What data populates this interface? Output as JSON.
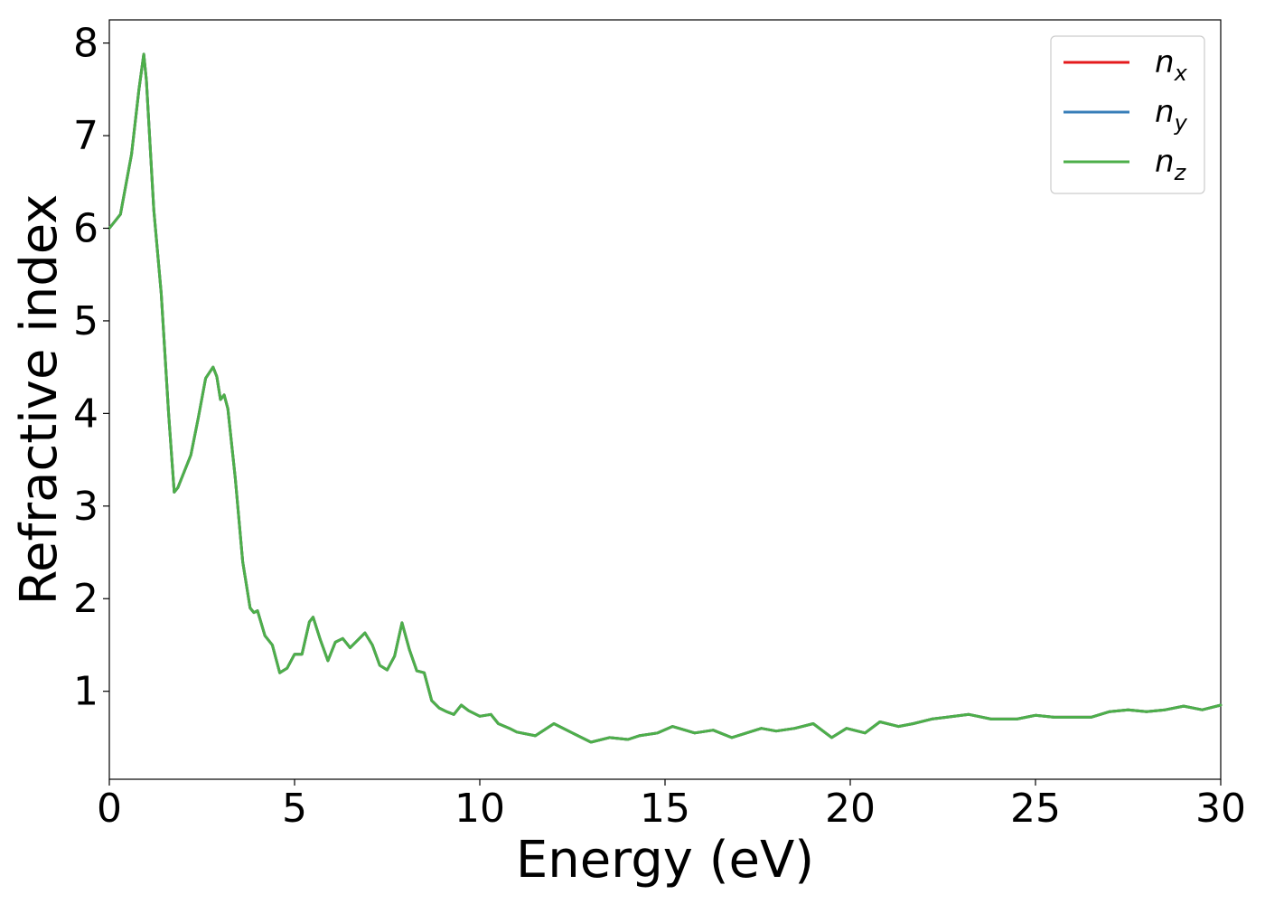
{
  "chart_data": {
    "type": "line",
    "title": "",
    "xlabel": "Energy (eV)",
    "ylabel": "Refractive index",
    "xlim": [
      0,
      30
    ],
    "ylim": [
      0.05,
      8.25
    ],
    "xticks": [
      0,
      5,
      10,
      15,
      20,
      25,
      30
    ],
    "yticks": [
      1,
      2,
      3,
      4,
      5,
      6,
      7,
      8
    ],
    "grid": false,
    "legend_position": "top-right",
    "colors": {
      "nx": "#e41a1c",
      "ny": "#377eb8",
      "nz": "#4daf4a"
    },
    "legend": [
      {
        "key": "nx",
        "base": "n",
        "sub": "x"
      },
      {
        "key": "ny",
        "base": "n",
        "sub": "y"
      },
      {
        "key": "nz",
        "base": "n",
        "sub": "z"
      }
    ],
    "x": [
      0,
      0.3,
      0.6,
      0.8,
      0.93,
      1.0,
      1.2,
      1.4,
      1.6,
      1.75,
      1.85,
      2.0,
      2.2,
      2.4,
      2.6,
      2.8,
      2.9,
      3.0,
      3.1,
      3.2,
      3.4,
      3.6,
      3.8,
      3.9,
      4.0,
      4.2,
      4.4,
      4.6,
      4.8,
      5.0,
      5.2,
      5.4,
      5.5,
      5.7,
      5.9,
      6.1,
      6.3,
      6.5,
      6.7,
      6.9,
      7.1,
      7.3,
      7.5,
      7.7,
      7.9,
      8.1,
      8.3,
      8.5,
      8.7,
      8.9,
      9.1,
      9.3,
      9.5,
      9.7,
      10.0,
      10.3,
      10.5,
      10.8,
      11.0,
      11.5,
      12.0,
      12.5,
      13.0,
      13.5,
      14.0,
      14.3,
      14.8,
      15.2,
      15.8,
      16.3,
      16.8,
      17.2,
      17.6,
      18.0,
      18.5,
      19.0,
      19.5,
      19.9,
      20.4,
      20.8,
      21.3,
      21.7,
      22.2,
      22.6,
      23.2,
      23.8,
      24.5,
      25.0,
      25.5,
      26.0,
      26.5,
      27.0,
      27.5,
      28.0,
      28.5,
      29.0,
      29.5,
      30.0
    ],
    "series": [
      {
        "name": "nx",
        "values": [
          6.0,
          6.15,
          6.8,
          7.5,
          7.88,
          7.6,
          6.2,
          5.3,
          4.0,
          3.15,
          3.2,
          3.35,
          3.55,
          3.95,
          4.38,
          4.5,
          4.4,
          4.15,
          4.2,
          4.05,
          3.3,
          2.4,
          1.9,
          1.85,
          1.87,
          1.6,
          1.5,
          1.2,
          1.25,
          1.4,
          1.4,
          1.75,
          1.8,
          1.55,
          1.33,
          1.53,
          1.57,
          1.47,
          1.55,
          1.63,
          1.5,
          1.28,
          1.23,
          1.38,
          1.74,
          1.45,
          1.22,
          1.2,
          0.9,
          0.82,
          0.78,
          0.75,
          0.85,
          0.79,
          0.73,
          0.75,
          0.65,
          0.6,
          0.56,
          0.52,
          0.65,
          0.55,
          0.45,
          0.5,
          0.48,
          0.52,
          0.55,
          0.62,
          0.55,
          0.58,
          0.5,
          0.55,
          0.6,
          0.57,
          0.6,
          0.65,
          0.5,
          0.6,
          0.55,
          0.67,
          0.62,
          0.65,
          0.7,
          0.72,
          0.75,
          0.7,
          0.7,
          0.74,
          0.72,
          0.72,
          0.72,
          0.78,
          0.8,
          0.78,
          0.8,
          0.84,
          0.8,
          0.85
        ]
      },
      {
        "name": "ny",
        "values": [
          6.0,
          6.15,
          6.8,
          7.5,
          7.88,
          7.6,
          6.2,
          5.3,
          4.0,
          3.15,
          3.2,
          3.35,
          3.55,
          3.95,
          4.38,
          4.5,
          4.4,
          4.15,
          4.2,
          4.05,
          3.3,
          2.4,
          1.9,
          1.85,
          1.87,
          1.6,
          1.5,
          1.2,
          1.25,
          1.4,
          1.4,
          1.75,
          1.8,
          1.55,
          1.33,
          1.53,
          1.57,
          1.47,
          1.55,
          1.63,
          1.5,
          1.28,
          1.23,
          1.38,
          1.74,
          1.45,
          1.22,
          1.2,
          0.9,
          0.82,
          0.78,
          0.75,
          0.85,
          0.79,
          0.73,
          0.75,
          0.65,
          0.6,
          0.56,
          0.52,
          0.65,
          0.55,
          0.45,
          0.5,
          0.48,
          0.52,
          0.55,
          0.62,
          0.55,
          0.58,
          0.5,
          0.55,
          0.6,
          0.57,
          0.6,
          0.65,
          0.5,
          0.6,
          0.55,
          0.67,
          0.62,
          0.65,
          0.7,
          0.72,
          0.75,
          0.7,
          0.7,
          0.74,
          0.72,
          0.72,
          0.72,
          0.78,
          0.8,
          0.78,
          0.8,
          0.84,
          0.8,
          0.85
        ]
      },
      {
        "name": "nz",
        "values": [
          6.0,
          6.15,
          6.8,
          7.5,
          7.88,
          7.6,
          6.2,
          5.3,
          4.0,
          3.15,
          3.2,
          3.35,
          3.55,
          3.95,
          4.38,
          4.5,
          4.4,
          4.15,
          4.2,
          4.05,
          3.3,
          2.4,
          1.9,
          1.85,
          1.87,
          1.6,
          1.5,
          1.2,
          1.25,
          1.4,
          1.4,
          1.75,
          1.8,
          1.55,
          1.33,
          1.53,
          1.57,
          1.47,
          1.55,
          1.63,
          1.5,
          1.28,
          1.23,
          1.38,
          1.74,
          1.45,
          1.22,
          1.2,
          0.9,
          0.82,
          0.78,
          0.75,
          0.85,
          0.79,
          0.73,
          0.75,
          0.65,
          0.6,
          0.56,
          0.52,
          0.65,
          0.55,
          0.45,
          0.5,
          0.48,
          0.52,
          0.55,
          0.62,
          0.55,
          0.58,
          0.5,
          0.55,
          0.6,
          0.57,
          0.6,
          0.65,
          0.5,
          0.6,
          0.55,
          0.67,
          0.62,
          0.65,
          0.7,
          0.72,
          0.75,
          0.7,
          0.7,
          0.74,
          0.72,
          0.72,
          0.72,
          0.78,
          0.8,
          0.78,
          0.8,
          0.84,
          0.8,
          0.85
        ]
      }
    ]
  }
}
